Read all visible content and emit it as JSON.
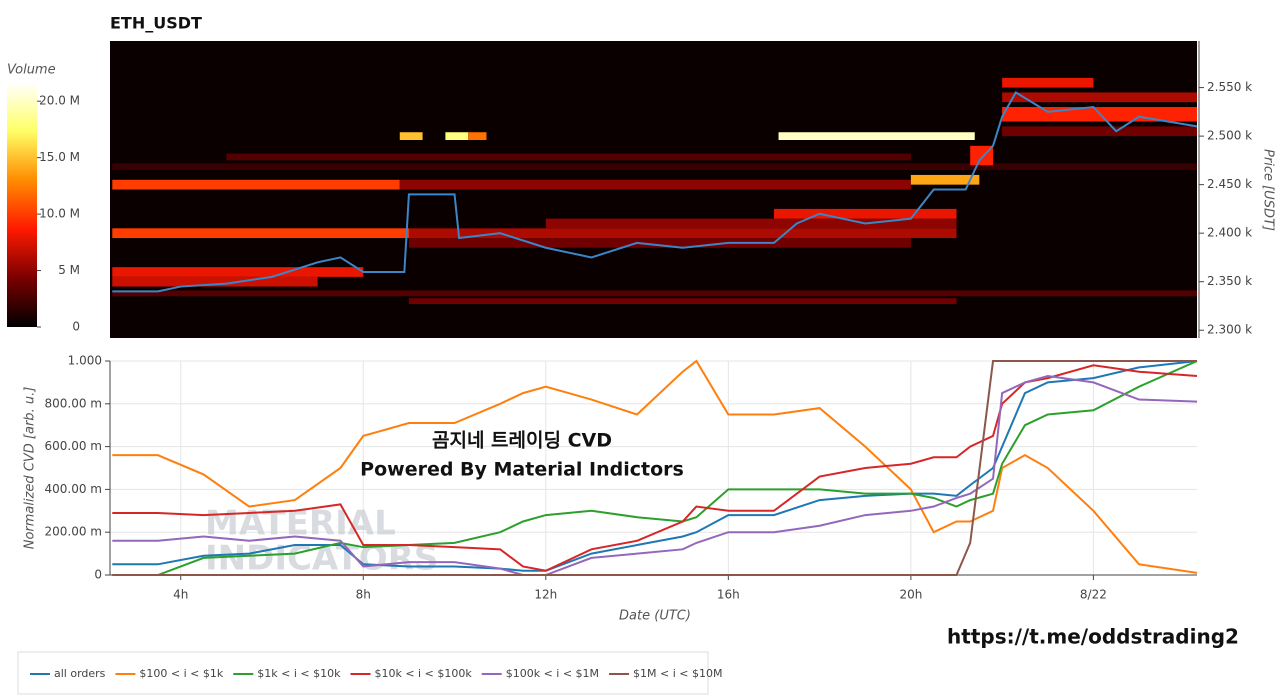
{
  "chart_data": [
    {
      "type": "heatmap",
      "title": "ETH_USDT",
      "y_label": "Price [USDT]",
      "xlim": [
        2.45,
        26.27
      ],
      "ylim": [
        2292,
        2598
      ],
      "yticks": [
        {
          "value": 2300,
          "label": "2.300 k"
        },
        {
          "value": 2350,
          "label": "2.350 k"
        },
        {
          "value": 2400,
          "label": "2.400 k"
        },
        {
          "value": 2450,
          "label": "2.450 k"
        },
        {
          "value": 2500,
          "label": "2.500 k"
        },
        {
          "value": 2550,
          "label": "2.550 k"
        }
      ],
      "colormap": [
        "#000000",
        "#7a0000",
        "#ff1a00",
        "#ff8c00",
        "#ffff66",
        "#ffffff"
      ],
      "colorbar": {
        "label": "Volume",
        "lim": [
          0,
          21700000
        ],
        "ticks": [
          0,
          {
            "value": 5000000,
            "label": "5 M"
          },
          {
            "value": 10000000,
            "label": "10.0 M"
          },
          {
            "value": 15000000,
            "label": "15.0 M"
          },
          {
            "value": 20000000,
            "label": "20.0 M"
          }
        ]
      },
      "cells": [
        {
          "x": [
            2.5,
            26.27
          ],
          "price": [
            2465,
            2472
          ],
          "volume": 2000000
        },
        {
          "x": [
            5,
            20
          ],
          "price": [
            2475,
            2482
          ],
          "volume": 3000000
        },
        {
          "x": [
            2.5,
            26.27
          ],
          "price": [
            2335,
            2341
          ],
          "volume": 3000000
        },
        {
          "x": [
            9,
            21
          ],
          "price": [
            2327,
            2333
          ],
          "volume": 4000000
        },
        {
          "x": [
            9,
            20
          ],
          "price": [
            2385,
            2395
          ],
          "volume": 4000000
        },
        {
          "x": [
            9,
            21
          ],
          "price": [
            2395,
            2405
          ],
          "volume": 6000000
        },
        {
          "x": [
            12,
            21
          ],
          "price": [
            2405,
            2415
          ],
          "volume": 5000000
        },
        {
          "x": [
            17,
            21
          ],
          "price": [
            2415,
            2425
          ],
          "volume": 8000000
        },
        {
          "x": [
            2.5,
            7
          ],
          "price": [
            2345,
            2355
          ],
          "volume": 7000000
        },
        {
          "x": [
            2.5,
            8
          ],
          "price": [
            2355,
            2365
          ],
          "volume": 8000000
        },
        {
          "x": [
            2.5,
            9
          ],
          "price": [
            2395,
            2405
          ],
          "volume": 10000000
        },
        {
          "x": [
            2.5,
            8.8
          ],
          "price": [
            2445,
            2455
          ],
          "volume": 10000000
        },
        {
          "x": [
            8.8,
            20
          ],
          "price": [
            2445,
            2455
          ],
          "volume": 5000000
        },
        {
          "x": [
            20,
            21.5
          ],
          "price": [
            2450,
            2460
          ],
          "volume": 14000000
        },
        {
          "x": [
            21.3,
            21.8
          ],
          "price": [
            2470,
            2490
          ],
          "volume": 9000000
        },
        {
          "x": [
            22,
            26.27
          ],
          "price": [
            2500,
            2510
          ],
          "volume": 4000000
        },
        {
          "x": [
            22,
            26.27
          ],
          "price": [
            2515,
            2530
          ],
          "volume": 9000000
        },
        {
          "x": [
            22,
            26.27
          ],
          "price": [
            2535,
            2545
          ],
          "volume": 6000000
        },
        {
          "x": [
            22,
            24
          ],
          "price": [
            2550,
            2560
          ],
          "volume": 8000000
        },
        {
          "x": [
            8.8,
            9.3
          ],
          "price": [
            2496,
            2504
          ],
          "volume": 15000000
        },
        {
          "x": [
            9.8,
            10.3
          ],
          "price": [
            2496,
            2504
          ],
          "volume": 18000000
        },
        {
          "x": [
            10.3,
            10.7
          ],
          "price": [
            2496,
            2504
          ],
          "volume": 12000000
        },
        {
          "x": [
            17.1,
            21.4
          ],
          "price": [
            2496,
            2504
          ],
          "volume": 20000000
        }
      ],
      "price_line": {
        "color": "#3a86c8",
        "x": [
          2.5,
          3.5,
          4,
          5,
          6,
          7,
          7.5,
          8,
          8.9,
          9,
          10,
          10.1,
          11,
          12,
          13,
          14,
          15,
          16,
          17,
          17.5,
          18,
          19,
          20,
          20.5,
          21.2,
          21.5,
          21.8,
          22,
          22.3,
          23,
          24,
          24.5,
          25,
          26.27
        ],
        "values": [
          2340,
          2340,
          2345,
          2348,
          2355,
          2370,
          2375,
          2360,
          2360,
          2440,
          2440,
          2395,
          2400,
          2385,
          2375,
          2390,
          2385,
          2390,
          2390,
          2410,
          2420,
          2410,
          2415,
          2445,
          2445,
          2475,
          2490,
          2520,
          2545,
          2525,
          2530,
          2505,
          2520,
          2510
        ]
      }
    },
    {
      "type": "line",
      "x_label": "Date (UTC)",
      "y_label": "Normalized CVD [arb. u.]",
      "grid": true,
      "xlim": [
        2.45,
        26.27
      ],
      "ylim": [
        0,
        1
      ],
      "xticks": [
        {
          "value": 4,
          "label": "4h"
        },
        {
          "value": 8,
          "label": "8h"
        },
        {
          "value": 12,
          "label": "12h"
        },
        {
          "value": 16,
          "label": "16h"
        },
        {
          "value": 20,
          "label": "20h"
        },
        {
          "value": 24,
          "label": "8/22"
        }
      ],
      "yticks": [
        0,
        {
          "value": 0.2,
          "label": "200.00 m"
        },
        {
          "value": 0.4,
          "label": "400.00 m"
        },
        {
          "value": 0.6,
          "label": "600.00 m"
        },
        {
          "value": 0.8,
          "label": "800.00 m"
        },
        {
          "value": 1,
          "label": "1.000"
        }
      ],
      "x": [
        2.5,
        3.5,
        4.5,
        5.5,
        6.5,
        7.5,
        8,
        9,
        10,
        11,
        11.5,
        12,
        13,
        14,
        15,
        15.3,
        16,
        17,
        18,
        19,
        20,
        20.5,
        21,
        21.3,
        21.8,
        22,
        22.5,
        23,
        24,
        25,
        26.27
      ],
      "series": [
        {
          "name": "all orders",
          "color": "#1f77b4",
          "values": [
            0.05,
            0.05,
            0.09,
            0.1,
            0.14,
            0.14,
            0.05,
            0.04,
            0.04,
            0.03,
            0.02,
            0.02,
            0.1,
            0.14,
            0.18,
            0.2,
            0.28,
            0.28,
            0.35,
            0.37,
            0.38,
            0.38,
            0.37,
            0.42,
            0.5,
            0.6,
            0.85,
            0.9,
            0.92,
            0.97,
            1.0
          ]
        },
        {
          "name": "$100 < i < $1k",
          "color": "#ff7f0e",
          "values": [
            0.56,
            0.56,
            0.47,
            0.32,
            0.35,
            0.5,
            0.65,
            0.71,
            0.71,
            0.8,
            0.85,
            0.88,
            0.82,
            0.75,
            0.95,
            1.0,
            0.75,
            0.75,
            0.78,
            0.6,
            0.4,
            0.2,
            0.25,
            0.25,
            0.3,
            0.5,
            0.56,
            0.5,
            0.3,
            0.05,
            0.01
          ]
        },
        {
          "name": "$1k < i < $10k",
          "color": "#2ca02c",
          "values": [
            0,
            0,
            0.08,
            0.09,
            0.1,
            0.15,
            0.13,
            0.14,
            0.15,
            0.2,
            0.25,
            0.28,
            0.3,
            0.27,
            0.25,
            0.27,
            0.4,
            0.4,
            0.4,
            0.38,
            0.38,
            0.36,
            0.32,
            0.35,
            0.38,
            0.52,
            0.7,
            0.75,
            0.77,
            0.88,
            1.0
          ]
        },
        {
          "name": "$10k < i < $100k",
          "color": "#d62728",
          "values": [
            0.29,
            0.29,
            0.28,
            0.29,
            0.3,
            0.33,
            0.14,
            0.14,
            0.13,
            0.12,
            0.04,
            0.02,
            0.12,
            0.16,
            0.25,
            0.32,
            0.3,
            0.3,
            0.46,
            0.5,
            0.52,
            0.55,
            0.55,
            0.6,
            0.65,
            0.8,
            0.9,
            0.92,
            0.98,
            0.95,
            0.93
          ]
        },
        {
          "name": "$100k < i < $1M",
          "color": "#9467bd",
          "values": [
            0.16,
            0.16,
            0.18,
            0.16,
            0.18,
            0.16,
            0.04,
            0.06,
            0.06,
            0.03,
            0,
            0,
            0.08,
            0.1,
            0.12,
            0.15,
            0.2,
            0.2,
            0.23,
            0.28,
            0.3,
            0.32,
            0.36,
            0.38,
            0.45,
            0.85,
            0.9,
            0.93,
            0.9,
            0.82,
            0.81
          ]
        },
        {
          "name": "$1M < i < $10M",
          "color": "#8c564b",
          "values": [
            0,
            0,
            0,
            0,
            0,
            0,
            0,
            0,
            0,
            0,
            0,
            0,
            0,
            0,
            0,
            0,
            0,
            0,
            0,
            0,
            0,
            0,
            0,
            0.15,
            1.0,
            1.0,
            1.0,
            1.0,
            1.0,
            1.0,
            1.0
          ]
        }
      ],
      "annotations": [
        "곰지네 트레이딩 CVD",
        "Powered By Material Indictors"
      ],
      "watermark": [
        "MATERIAL",
        "INDICATORS"
      ]
    }
  ],
  "footer_link": "https://t.me/oddstrading2"
}
